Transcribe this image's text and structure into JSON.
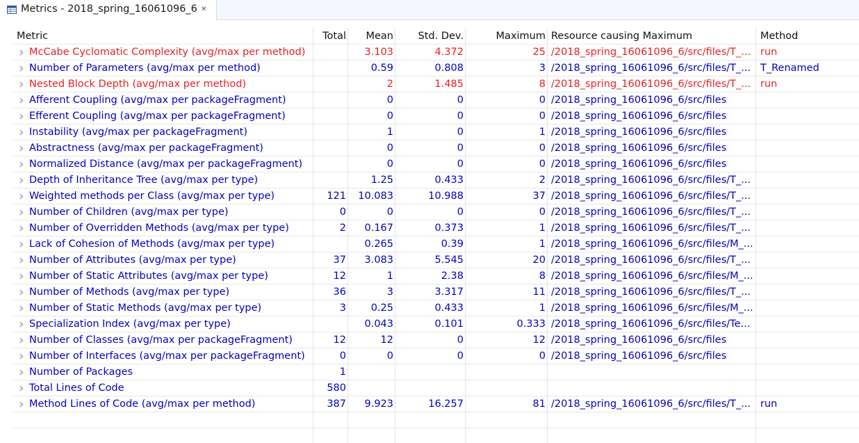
{
  "tab": {
    "title": "Metrics - 2018_spring_16061096_6",
    "close_glyph": "✕"
  },
  "columns": [
    "Metric",
    "Total",
    "Mean",
    "Std. Dev.",
    "Maximum",
    "Resource causing Maximum",
    "Method"
  ],
  "colors": {
    "normal": "#0000c0",
    "warning": "#e82020",
    "header": "#111111"
  },
  "rows": [
    {
      "metric": "McCabe Cyclomatic Complexity (avg/max per method)",
      "total": "",
      "mean": "3.103",
      "stddev": "4.372",
      "maximum": "25",
      "resource": "/2018_spring_16061096_6/src/files/T_...",
      "method": "run",
      "warn": true
    },
    {
      "metric": "Number of Parameters (avg/max per method)",
      "total": "",
      "mean": "0.59",
      "stddev": "0.808",
      "maximum": "3",
      "resource": "/2018_spring_16061096_6/src/files/T_...",
      "method": "T_Renamed",
      "warn": false
    },
    {
      "metric": "Nested Block Depth (avg/max per method)",
      "total": "",
      "mean": "2",
      "stddev": "1.485",
      "maximum": "8",
      "resource": "/2018_spring_16061096_6/src/files/T_...",
      "method": "run",
      "warn": true
    },
    {
      "metric": "Afferent Coupling (avg/max per packageFragment)",
      "total": "",
      "mean": "0",
      "stddev": "0",
      "maximum": "0",
      "resource": "/2018_spring_16061096_6/src/files",
      "method": "",
      "warn": false
    },
    {
      "metric": "Efferent Coupling (avg/max per packageFragment)",
      "total": "",
      "mean": "0",
      "stddev": "0",
      "maximum": "0",
      "resource": "/2018_spring_16061096_6/src/files",
      "method": "",
      "warn": false
    },
    {
      "metric": "Instability (avg/max per packageFragment)",
      "total": "",
      "mean": "1",
      "stddev": "0",
      "maximum": "1",
      "resource": "/2018_spring_16061096_6/src/files",
      "method": "",
      "warn": false
    },
    {
      "metric": "Abstractness (avg/max per packageFragment)",
      "total": "",
      "mean": "0",
      "stddev": "0",
      "maximum": "0",
      "resource": "/2018_spring_16061096_6/src/files",
      "method": "",
      "warn": false
    },
    {
      "metric": "Normalized Distance (avg/max per packageFragment)",
      "total": "",
      "mean": "0",
      "stddev": "0",
      "maximum": "0",
      "resource": "/2018_spring_16061096_6/src/files",
      "method": "",
      "warn": false
    },
    {
      "metric": "Depth of Inheritance Tree (avg/max per type)",
      "total": "",
      "mean": "1.25",
      "stddev": "0.433",
      "maximum": "2",
      "resource": "/2018_spring_16061096_6/src/files/T_...",
      "method": "",
      "warn": false
    },
    {
      "metric": "Weighted methods per Class (avg/max per type)",
      "total": "121",
      "mean": "10.083",
      "stddev": "10.988",
      "maximum": "37",
      "resource": "/2018_spring_16061096_6/src/files/T_...",
      "method": "",
      "warn": false
    },
    {
      "metric": "Number of Children (avg/max per type)",
      "total": "0",
      "mean": "0",
      "stddev": "0",
      "maximum": "0",
      "resource": "/2018_spring_16061096_6/src/files/T_...",
      "method": "",
      "warn": false
    },
    {
      "metric": "Number of Overridden Methods (avg/max per type)",
      "total": "2",
      "mean": "0.167",
      "stddev": "0.373",
      "maximum": "1",
      "resource": "/2018_spring_16061096_6/src/files/T_...",
      "method": "",
      "warn": false
    },
    {
      "metric": "Lack of Cohesion of Methods (avg/max per type)",
      "total": "",
      "mean": "0.265",
      "stddev": "0.39",
      "maximum": "1",
      "resource": "/2018_spring_16061096_6/src/files/M_...",
      "method": "",
      "warn": false
    },
    {
      "metric": "Number of Attributes (avg/max per type)",
      "total": "37",
      "mean": "3.083",
      "stddev": "5.545",
      "maximum": "20",
      "resource": "/2018_spring_16061096_6/src/files/T_...",
      "method": "",
      "warn": false
    },
    {
      "metric": "Number of Static Attributes (avg/max per type)",
      "total": "12",
      "mean": "1",
      "stddev": "2.38",
      "maximum": "8",
      "resource": "/2018_spring_16061096_6/src/files/M_...",
      "method": "",
      "warn": false
    },
    {
      "metric": "Number of Methods (avg/max per type)",
      "total": "36",
      "mean": "3",
      "stddev": "3.317",
      "maximum": "11",
      "resource": "/2018_spring_16061096_6/src/files/T_...",
      "method": "",
      "warn": false
    },
    {
      "metric": "Number of Static Methods (avg/max per type)",
      "total": "3",
      "mean": "0.25",
      "stddev": "0.433",
      "maximum": "1",
      "resource": "/2018_spring_16061096_6/src/files/M_...",
      "method": "",
      "warn": false
    },
    {
      "metric": "Specialization Index (avg/max per type)",
      "total": "",
      "mean": "0.043",
      "stddev": "0.101",
      "maximum": "0.333",
      "resource": "/2018_spring_16061096_6/src/files/Te...",
      "method": "",
      "warn": false
    },
    {
      "metric": "Number of Classes (avg/max per packageFragment)",
      "total": "12",
      "mean": "12",
      "stddev": "0",
      "maximum": "12",
      "resource": "/2018_spring_16061096_6/src/files",
      "method": "",
      "warn": false
    },
    {
      "metric": "Number of Interfaces (avg/max per packageFragment)",
      "total": "0",
      "mean": "0",
      "stddev": "0",
      "maximum": "0",
      "resource": "/2018_spring_16061096_6/src/files",
      "method": "",
      "warn": false
    },
    {
      "metric": "Number of Packages",
      "total": "1",
      "mean": "",
      "stddev": "",
      "maximum": "",
      "resource": "",
      "method": "",
      "warn": false
    },
    {
      "metric": "Total Lines of Code",
      "total": "580",
      "mean": "",
      "stddev": "",
      "maximum": "",
      "resource": "",
      "method": "",
      "warn": false
    },
    {
      "metric": "Method Lines of Code (avg/max per method)",
      "total": "387",
      "mean": "9.923",
      "stddev": "16.257",
      "maximum": "81",
      "resource": "/2018_spring_16061096_6/src/files/T_...",
      "method": "run",
      "warn": false
    }
  ]
}
